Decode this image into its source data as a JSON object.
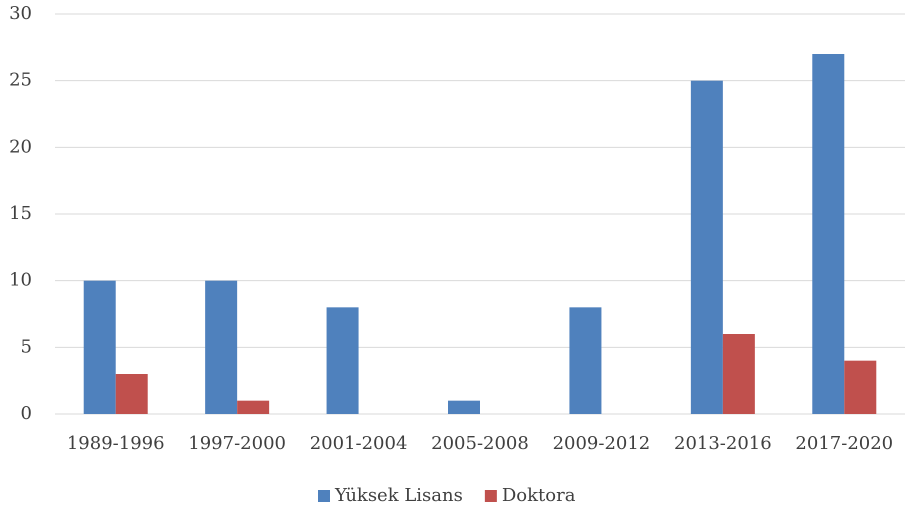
{
  "chart_data": {
    "type": "bar",
    "categories": [
      "1989-1996",
      "1997-2000",
      "2001-2004",
      "2005-2008",
      "2009-2012",
      "2013-2016",
      "2017-2020"
    ],
    "series": [
      {
        "name": "Yüksek Lisans",
        "color": "#4f81bd",
        "values": [
          10,
          10,
          8,
          1,
          8,
          25,
          27
        ]
      },
      {
        "name": "Doktora",
        "color": "#c0504d",
        "values": [
          3,
          1,
          0,
          0,
          0,
          6,
          4
        ]
      }
    ],
    "ylim": [
      0,
      30
    ],
    "yticks": [
      0,
      5,
      10,
      15,
      20,
      25,
      30
    ],
    "grid": true,
    "legend": "bottom"
  }
}
